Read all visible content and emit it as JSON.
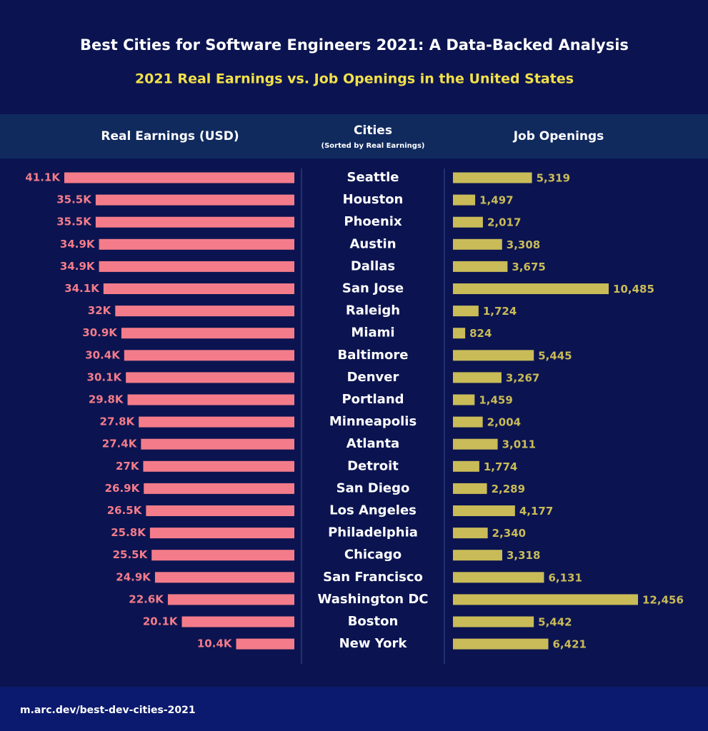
{
  "chart_data": {
    "type": "butterfly-bar",
    "title": "Best Cities for Software Engineers 2021: A Data-Backed Analysis",
    "subtitle": "2021 Real Earnings vs. Job Openings in the United States",
    "category_header": "Cities",
    "category_note": "(Sorted by Real Earnings)",
    "categories": [
      "Seattle",
      "Houston",
      "Phoenix",
      "Austin",
      "Dallas",
      "San Jose",
      "Raleigh",
      "Miami",
      "Baltimore",
      "Denver",
      "Portland",
      "Minneapolis",
      "Atlanta",
      "Detroit",
      "San Diego",
      "Los Angeles",
      "Philadelphia",
      "Chicago",
      "San Francisco",
      "Washington DC",
      "Boston",
      "New York"
    ],
    "series": [
      {
        "name": "Real Earnings (USD)",
        "color": "#f47c8a",
        "values": [
          41.1,
          35.5,
          35.5,
          34.9,
          34.9,
          34.1,
          32,
          30.9,
          30.4,
          30.1,
          29.8,
          27.8,
          27.4,
          27,
          26.9,
          26.5,
          25.8,
          25.5,
          24.9,
          22.6,
          20.1,
          10.4
        ],
        "value_labels": [
          "41.1K",
          "35.5K",
          "35.5K",
          "34.9K",
          "34.9K",
          "34.1K",
          "32K",
          "30.9K",
          "30.4K",
          "30.1K",
          "29.8K",
          "27.8K",
          "27.4K",
          "27K",
          "26.9K",
          "26.5K",
          "25.8K",
          "25.5K",
          "24.9K",
          "22.6K",
          "20.1K",
          "10.4K"
        ]
      },
      {
        "name": "Job Openings",
        "color": "#c9bb58",
        "values": [
          5319,
          1497,
          2017,
          3308,
          3675,
          10485,
          1724,
          824,
          5445,
          3267,
          1459,
          2004,
          3011,
          1774,
          2289,
          4177,
          2340,
          3318,
          6131,
          12456,
          5442,
          6421
        ],
        "value_labels": [
          "5,319",
          "1,497",
          "2,017",
          "3,308",
          "3,675",
          "10,485",
          "1,724",
          "824",
          "5,445",
          "3,267",
          "1,459",
          "2,004",
          "3,011",
          "1,774",
          "2,289",
          "4,177",
          "2,340",
          "3,318",
          "6,131",
          "12,456",
          "5,442",
          "6,421"
        ]
      }
    ]
  },
  "footer": {
    "url": "m.arc.dev/best-dev-cities-2021"
  }
}
